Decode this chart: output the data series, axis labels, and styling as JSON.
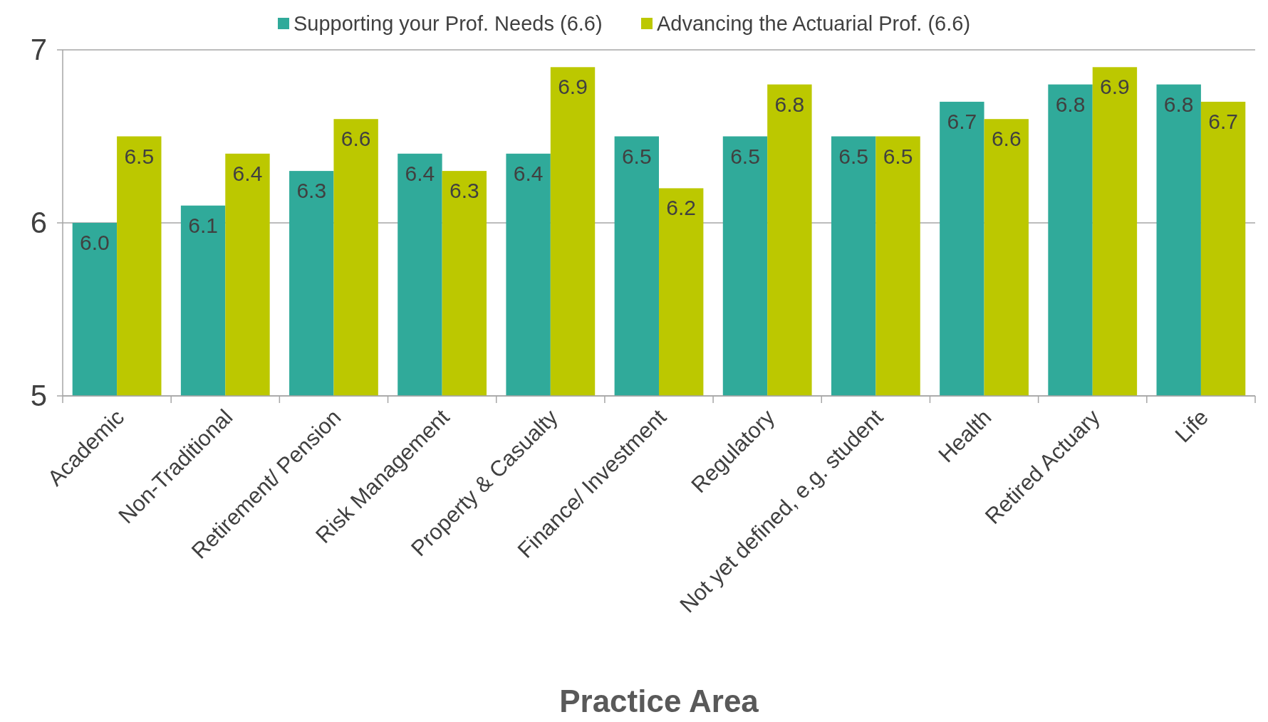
{
  "chart_data": {
    "type": "bar",
    "xlabel": "Practice Area",
    "categories": [
      "Academic",
      "Non-Traditional",
      "Retirement/ Pension",
      "Risk Management",
      "Property & Casualty",
      "Finance/ Investment",
      "Regulatory",
      "Not yet defined, e.g. student",
      "Health",
      "Retired Actuary",
      "Life"
    ],
    "series": [
      {
        "name": "Supporting your Prof. Needs (6.6)",
        "color": "#30aa9a",
        "values": [
          6.0,
          6.1,
          6.3,
          6.4,
          6.4,
          6.5,
          6.5,
          6.5,
          6.7,
          6.8,
          6.8
        ],
        "value_labels": [
          "6.0",
          "6.1",
          "6.3",
          "6.4",
          "6.4",
          "6.5",
          "6.5",
          "6.5",
          "6.7",
          "6.8",
          "6.8"
        ]
      },
      {
        "name": "Advancing the Actuarial Prof. (6.6)",
        "color": "#bcc800",
        "values": [
          6.5,
          6.4,
          6.6,
          6.3,
          6.9,
          6.2,
          6.8,
          6.5,
          6.6,
          6.9,
          6.7
        ],
        "value_labels": [
          "6.5",
          "6.4",
          "6.6",
          "6.3",
          "6.9",
          "6.2",
          "6.8",
          "6.5",
          "6.6",
          "6.9",
          "6.7"
        ]
      }
    ],
    "ylim": [
      5,
      7
    ],
    "yticks": [
      5,
      6,
      7
    ],
    "grid": "y",
    "legend": "top"
  }
}
